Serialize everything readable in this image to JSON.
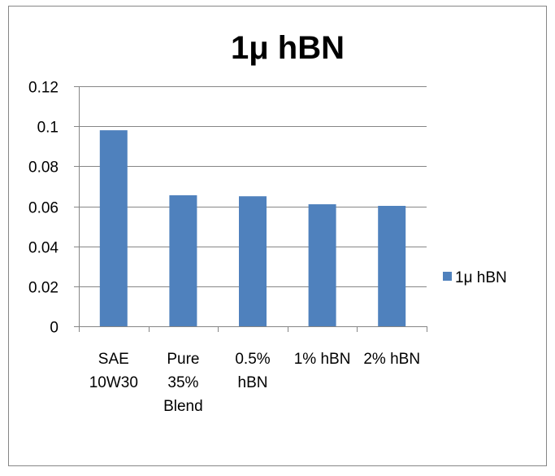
{
  "chart_data": {
    "type": "bar",
    "title": "1μ hBN",
    "categories": [
      [
        "SAE",
        "10W30"
      ],
      [
        "Pure",
        "35%",
        "Blend"
      ],
      [
        "0.5%",
        "hBN"
      ],
      [
        "1% hBN"
      ],
      [
        "2% hBN"
      ]
    ],
    "series": [
      {
        "name": "1μ hBN",
        "color": "#4F81BD",
        "values": [
          0.098,
          0.0655,
          0.065,
          0.061,
          0.0602
        ]
      }
    ],
    "ylim": [
      0,
      0.12
    ],
    "yticks": [
      "0",
      "0.02",
      "0.04",
      "0.06",
      "0.08",
      "0.1",
      "0.12"
    ],
    "xlabel": "",
    "ylabel": "",
    "grid": true,
    "legend": "right"
  }
}
